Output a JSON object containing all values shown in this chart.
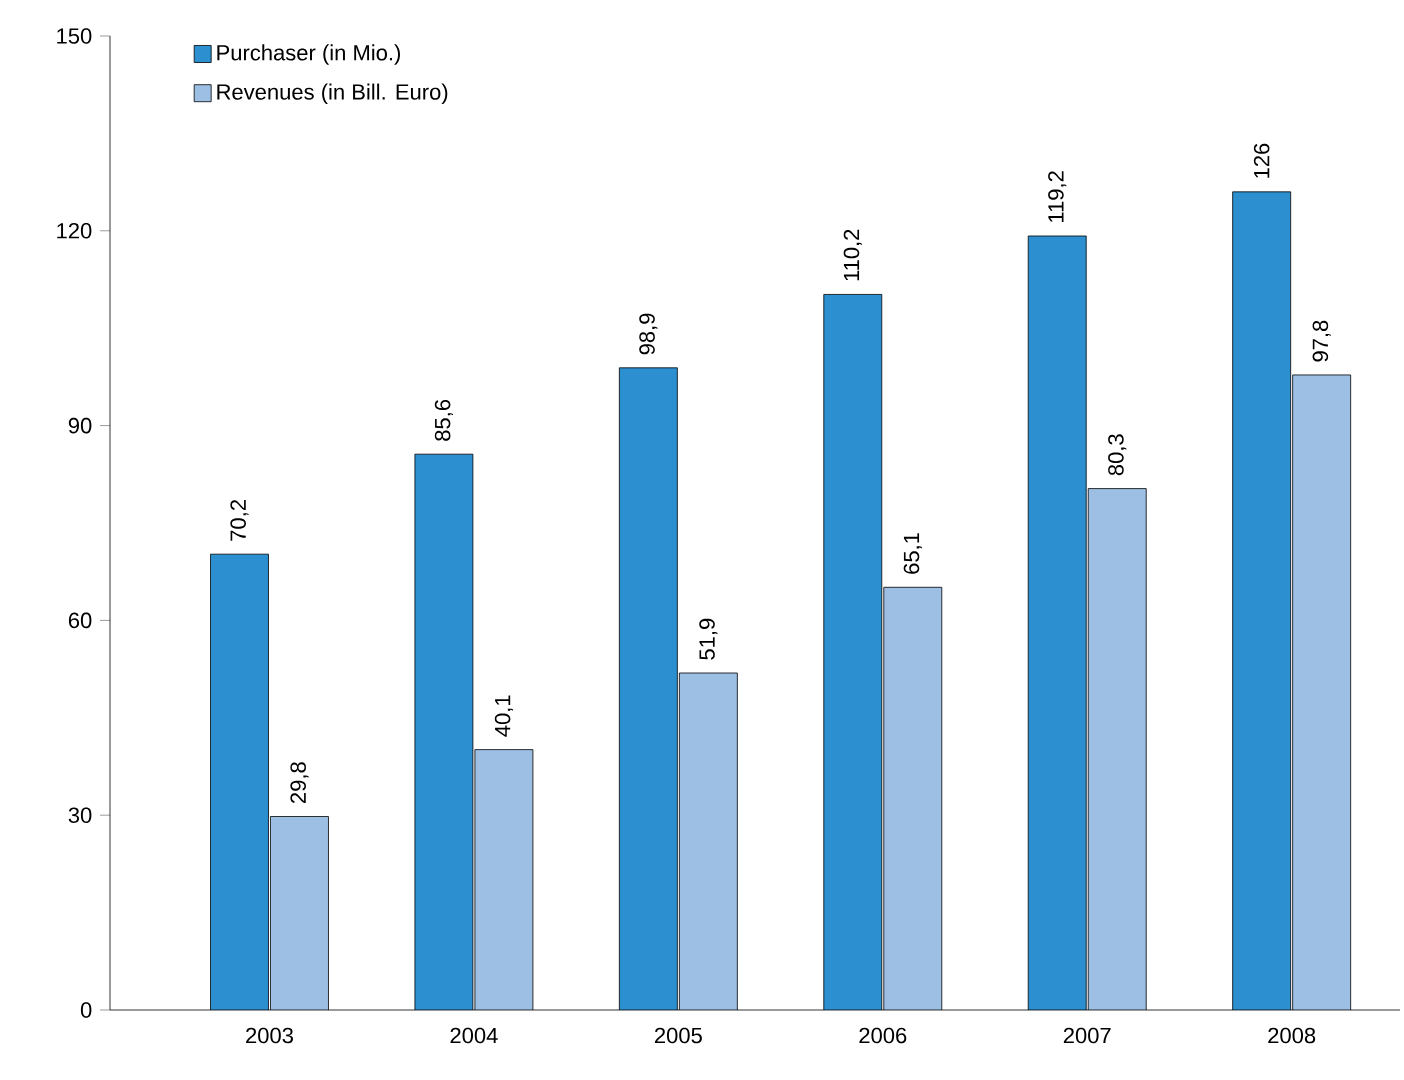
{
  "chart_data": {
    "type": "bar",
    "categories": [
      "2003",
      "2004",
      "2005",
      "2006",
      "2007",
      "2008"
    ],
    "series": [
      {
        "name": "Purchaser (in Mio.)",
        "color": "#2b8fd0",
        "values": [
          70.2,
          85.6,
          98.9,
          110.2,
          119.2,
          126
        ],
        "value_labels": [
          "70,2",
          "85,6",
          "98,9",
          "110,2",
          "119,2",
          "126"
        ]
      },
      {
        "name": "Revenues (in Bill. Euro)",
        "color": "#9dbfe3",
        "values": [
          29.8,
          40.1,
          51.9,
          65.1,
          80.3,
          97.8
        ],
        "value_labels": [
          "29,8",
          "40,1",
          "51,9",
          "65,1",
          "80,3",
          "97,8"
        ]
      }
    ],
    "ylim": [
      0,
      150
    ],
    "yticks": [
      0,
      30,
      60,
      90,
      120,
      150
    ],
    "legend": "top left"
  }
}
